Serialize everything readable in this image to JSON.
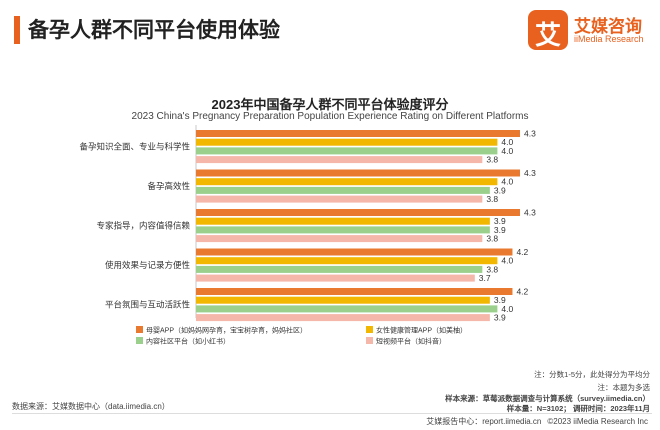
{
  "header": {
    "title": "备孕人群不同平台使用体验"
  },
  "logo": {
    "mark": "艾",
    "name": "艾媒咨询",
    "sub": "iiMedia Research"
  },
  "colors": {
    "accent": "#e8611f",
    "series": [
      "#e8792f",
      "#f2b700",
      "#9ad08c",
      "#f4b7a9"
    ],
    "text": "#333333"
  },
  "chart_data": {
    "type": "bar",
    "orientation": "horizontal",
    "title": "2023年中国备孕人群不同平台体验度评分",
    "subtitle": "2023 China's Pregnancy Preparation Population Experience Rating on Different Platforms",
    "categories": [
      "备孕知识全面、专业与科学性",
      "备孕高效性",
      "专家指导，内容值得信赖",
      "使用效果与记录方便性",
      "平台氛围与互动活跃性"
    ],
    "series": [
      {
        "name": "母婴APP（如妈妈网孕育，宝宝树孕育，妈妈社区）",
        "values": [
          4.3,
          4.3,
          4.3,
          4.2,
          4.2
        ]
      },
      {
        "name": "女性健康管理APP（如美柚）",
        "values": [
          4.0,
          4.0,
          3.9,
          4.0,
          3.9
        ]
      },
      {
        "name": "内容社区平台（如小红书）",
        "values": [
          4.0,
          3.9,
          3.9,
          3.8,
          4.0
        ]
      },
      {
        "name": "短视频平台（如抖音）",
        "values": [
          3.8,
          3.8,
          3.8,
          3.7,
          3.9
        ]
      }
    ],
    "xlim": [
      0,
      4.3
    ],
    "grid": false,
    "legend_position": "bottom"
  },
  "notes": {
    "line1": "注：分数1-5分，此处得分为平均分",
    "line2": "注：本题为多选",
    "sample_source_label": "样本来源：",
    "sample_source": "草莓派数据调查与计算系统（survey.iimedia.cn）",
    "sample_size_label": "样本量：",
    "sample_size": "N=3102；",
    "survey_time_label": "调研时间：",
    "survey_time": "2023年11月"
  },
  "source": "数据来源：艾媒数据中心（data.iimedia.cn）",
  "footer": {
    "brand": "艾媒报告中心：",
    "url": "report.iimedia.cn",
    "copyright": "©2023  iiMedia Research  Inc"
  }
}
